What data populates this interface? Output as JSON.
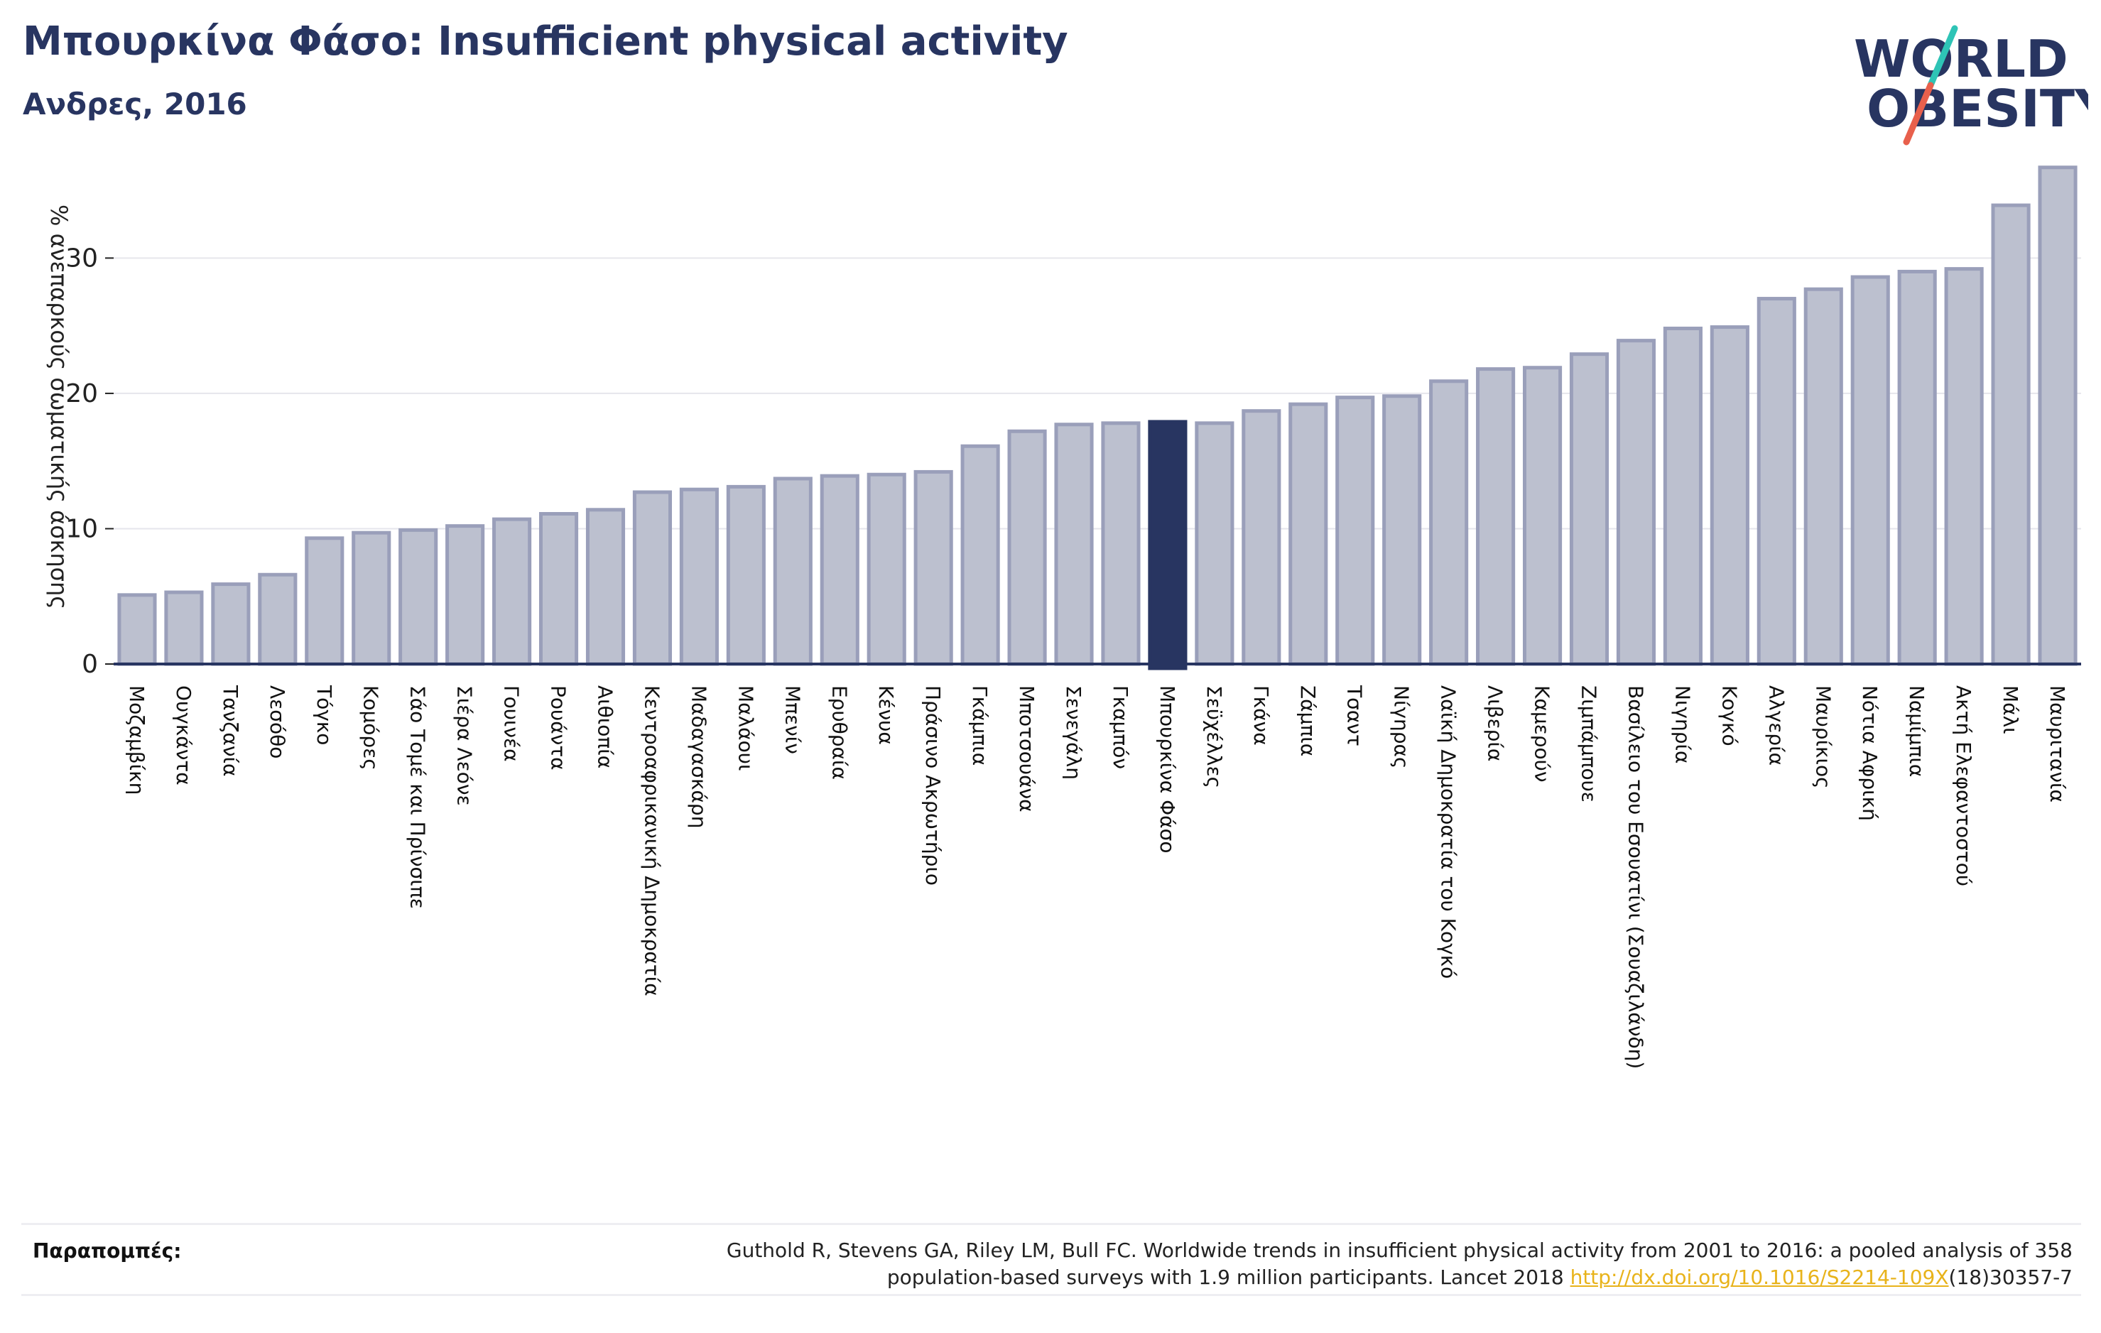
{
  "header": {
    "title": "Μπουρκίνα Φάσο: Insufficient physical activity",
    "subtitle": "Ανδρες, 2016"
  },
  "logo": {
    "line1": "WORLD",
    "line2": "OBESITY",
    "text_color": "#283561",
    "slash_colors": [
      "#2ec4b6",
      "#e8604c"
    ]
  },
  "colors": {
    "bar": "#bcc0cf",
    "bar_border": "#9a9fba",
    "highlight": "#283561",
    "axis": "#283561",
    "grid": "#e6e6ec",
    "link": "#e8b31b"
  },
  "chart_data": {
    "type": "bar",
    "ylabel": "% ανεπαρκούς σωματικής άσκησης",
    "ylim": [
      0,
      37
    ],
    "yticks": [
      0,
      10,
      20,
      30
    ],
    "grid": true,
    "highlight": "Μπουρκίνα Φάσο",
    "categories": [
      "Μοζαμβίκη",
      "Ουγκάντα",
      "Τανζανία",
      "Λεσόθο",
      "Τόγκο",
      "Κομόρες",
      "Σάο Τομέ και Πρίνσιπε",
      "Σιέρα Λεόνε",
      "Γουινέα",
      "Ρουάντα",
      "Αιθιοπία",
      "Κεντροαφρικανική Δημοκρατία",
      "Μαδαγασκάρη",
      "Μαλάουι",
      "Μπενίν",
      "Ερυθραία",
      "Κένυα",
      "Πράσινο Ακρωτήριο",
      "Γκάμπια",
      "Μποτσουάνα",
      "Σενεγάλη",
      "Γκαμπόν",
      "Μπουρκίνα Φάσο",
      "Σεϋχέλλες",
      "Γκάνα",
      "Ζάμπια",
      "Τσαντ",
      "Νίγηρας",
      "Λαϊκή Δημοκρατία του Κογκό",
      "Λιβερία",
      "Καμερούν",
      "Ζιμπάμπουε",
      "Βασίλειο του Εσουατίνι (Σουαζιλάνδη)",
      "Νιγηρία",
      "Κογκό",
      "Αλγερία",
      "Μαυρίκιος",
      "Νότια Αφρική",
      "Ναμίμπια",
      "Ακτή Ελεφαντοστού",
      "Μάλι",
      "Μαυριτανία"
    ],
    "values": [
      5.1,
      5.3,
      5.9,
      6.6,
      9.3,
      9.7,
      9.9,
      10.2,
      10.7,
      11.1,
      11.4,
      12.7,
      12.9,
      13.1,
      13.7,
      13.9,
      14.0,
      14.2,
      16.1,
      17.2,
      17.7,
      17.8,
      17.9,
      17.8,
      18.7,
      19.2,
      19.7,
      19.8,
      20.9,
      21.8,
      21.9,
      22.9,
      23.9,
      24.8,
      24.9,
      27.0,
      27.7,
      28.6,
      29.0,
      29.2,
      33.9,
      36.7
    ]
  },
  "footer": {
    "ref_label": "Παραπομπές:",
    "ref_line1": "Guthold R, Stevens GA, Riley LM, Bull FC. Worldwide trends in insufficient physical activity from 2001 to 2016: a pooled analysis of 358",
    "ref_line2_pre": "population-based surveys with 1.9 million participants. Lancet 2018 ",
    "ref_link": "http://dx.doi.org/10.1016/S2214-109X",
    "ref_line2_post": "(18)30357-7"
  }
}
